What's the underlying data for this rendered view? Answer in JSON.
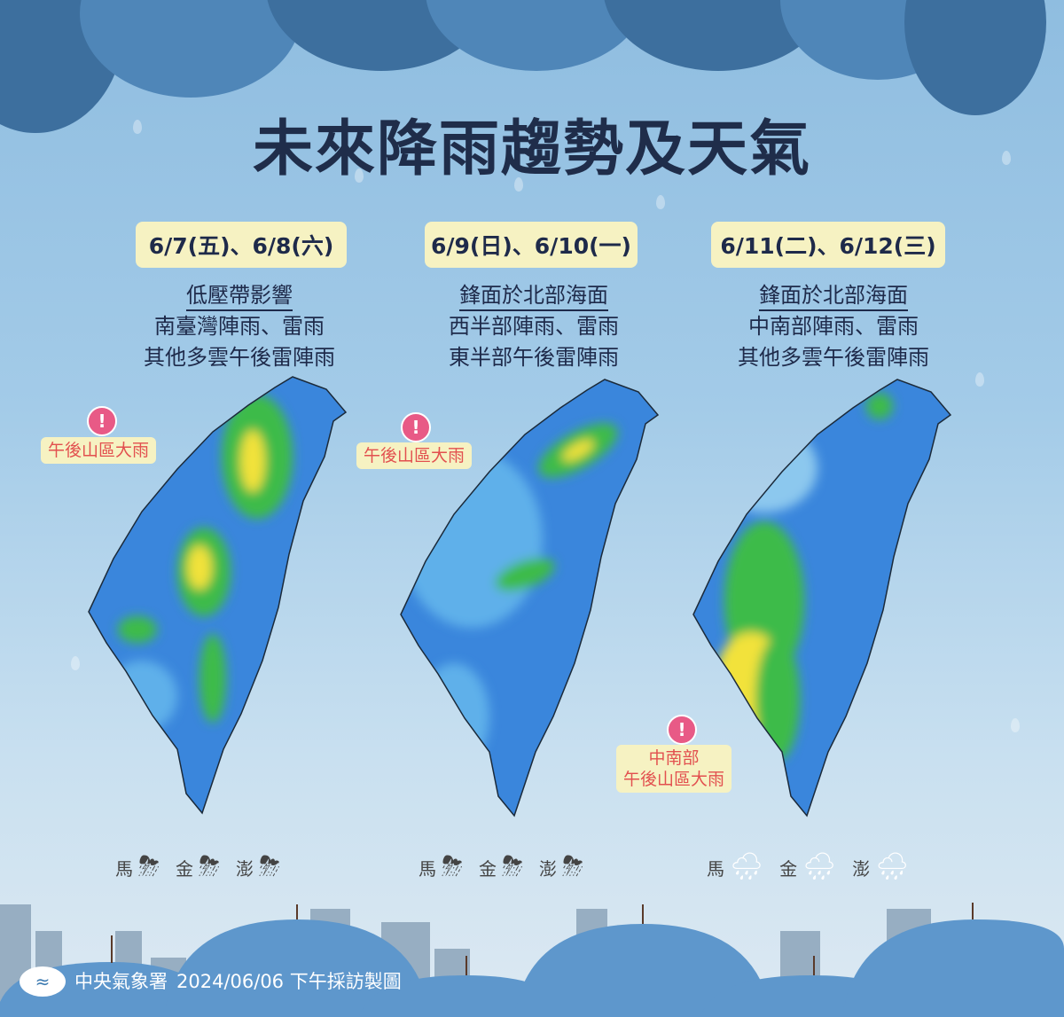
{
  "title": "未來降雨趨勢及天氣",
  "panels": [
    {
      "date": "6/7(五)、6/8(六)",
      "cause": "低壓帶影響",
      "line1": "南臺灣陣雨、雷雨",
      "line2": "其他多雲午後雷陣雨",
      "alert": [
        "午後山區大雨"
      ],
      "islands": [
        {
          "name": "馬",
          "icon": "thunderstorm-icon"
        },
        {
          "name": "金",
          "icon": "thunderstorm-icon"
        },
        {
          "name": "澎",
          "icon": "thunderstorm-icon"
        }
      ]
    },
    {
      "date": "6/9(日)、6/10(一)",
      "cause": "鋒面於北部海面",
      "line1": "西半部陣雨、雷雨",
      "line2": "東半部午後雷陣雨",
      "alert": [
        "午後山區大雨"
      ],
      "islands": [
        {
          "name": "馬",
          "icon": "thunderstorm-icon"
        },
        {
          "name": "金",
          "icon": "thunderstorm-icon"
        },
        {
          "name": "澎",
          "icon": "thunderstorm-icon"
        }
      ]
    },
    {
      "date": "6/11(二)、6/12(三)",
      "cause": "鋒面於北部海面",
      "line1": "中南部陣雨、雷雨",
      "line2": "其他多雲午後雷陣雨",
      "alert": [
        "中南部",
        "午後山區大雨"
      ],
      "islands": [
        {
          "name": "馬",
          "icon": "rain-cloud-icon"
        },
        {
          "name": "金",
          "icon": "rain-cloud-icon"
        },
        {
          "name": "澎",
          "icon": "rain-cloud-icon"
        }
      ]
    }
  ],
  "footer": {
    "agency": "中央氣象署",
    "text": "2024/06/06 下午採訪製圖"
  },
  "colors": {
    "rain_low": "#2f7fd8",
    "rain_mid": "#3dbb4a",
    "rain_high": "#f2e23a",
    "alert_text": "#e2504f",
    "date_box": "#f6f2c2"
  }
}
